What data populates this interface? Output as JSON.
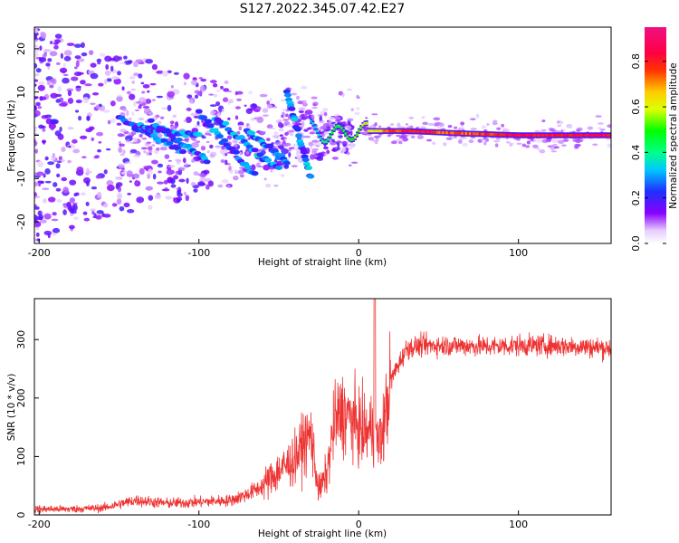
{
  "title": "S127.2022.345.07.42.E27",
  "chart_data": [
    {
      "type": "heatmap",
      "title": "S127.2022.345.07.42.E27",
      "xlabel": "Height of straight line (km)",
      "ylabel": "Frequency (Hz)",
      "xlim": [
        -203,
        158
      ],
      "ylim": [
        -25,
        25
      ],
      "xticks": [
        "-200",
        "-100",
        "0",
        "100"
      ],
      "xtick_values": [
        -200,
        -100,
        0,
        100
      ],
      "yticks": [
        "20",
        "10",
        "0",
        "-10",
        "-20"
      ],
      "ytick_values": [
        20,
        10,
        0,
        -10,
        -20
      ],
      "colorbar": {
        "label": "Normalized spectral amplitude",
        "range": [
          0,
          0.95
        ],
        "ticks": [
          "0.0",
          "0.2",
          "0.4",
          "0.6",
          "0.8"
        ],
        "tick_values": [
          0.0,
          0.2,
          0.4,
          0.6,
          0.8
        ],
        "colormap": "rainbow (white - violet - blue - cyan - green - yellow - red - magenta)"
      },
      "description_points": [
        {
          "x": -180,
          "freq_spread": 25,
          "amplitude": 0.1
        },
        {
          "x": -140,
          "freq_center": 1,
          "amplitude": 0.25
        },
        {
          "x": -110,
          "freq_center": -4,
          "amplitude": 0.3
        },
        {
          "x": -90,
          "freq_center": 4,
          "amplitude": 0.25
        },
        {
          "x": -60,
          "freq_center": -5,
          "amplitude": 0.3
        },
        {
          "x": -40,
          "freq_center": 3,
          "amplitude": 0.2
        },
        {
          "x": -20,
          "freq_center": 0,
          "amplitude": 0.45
        },
        {
          "x": 0,
          "freq_center": 1,
          "amplitude": 0.55
        },
        {
          "x": 30,
          "freq_center": 1,
          "amplitude": 0.85
        },
        {
          "x": 60,
          "freq_center": 0.5,
          "amplitude": 0.75
        },
        {
          "x": 100,
          "freq_center": 0,
          "amplitude": 0.85
        },
        {
          "x": 150,
          "freq_center": 0,
          "amplitude": 0.85
        }
      ],
      "grid": false
    },
    {
      "type": "line",
      "xlabel": "Height of straight line (km)",
      "ylabel": "SNR (10 * v/v)",
      "xlim": [
        -203,
        158
      ],
      "ylim": [
        0,
        370
      ],
      "xticks": [
        "-200",
        "-100",
        "0",
        "100"
      ],
      "xtick_values": [
        -200,
        -100,
        0,
        100
      ],
      "yticks": [
        "0",
        "100",
        "200",
        "300"
      ],
      "ytick_values": [
        0,
        100,
        200,
        300
      ],
      "color": "#ee3333",
      "x": [
        -203,
        -180,
        -160,
        -140,
        -120,
        -100,
        -80,
        -70,
        -60,
        -50,
        -40,
        -35,
        -30,
        -25,
        -20,
        -15,
        -10,
        -5,
        0,
        5,
        10,
        12,
        15,
        20,
        30,
        40,
        60,
        80,
        100,
        120,
        140,
        158
      ],
      "y": [
        10,
        10,
        12,
        25,
        20,
        22,
        25,
        35,
        50,
        75,
        95,
        120,
        140,
        40,
        70,
        160,
        175,
        165,
        150,
        140,
        150,
        120,
        140,
        230,
        285,
        290,
        290,
        288,
        290,
        290,
        288,
        285
      ],
      "notes": [
        "spike near x=10 reaching ~370",
        "noisy signal with high-frequency fluctuations"
      ],
      "grid": false
    }
  ]
}
